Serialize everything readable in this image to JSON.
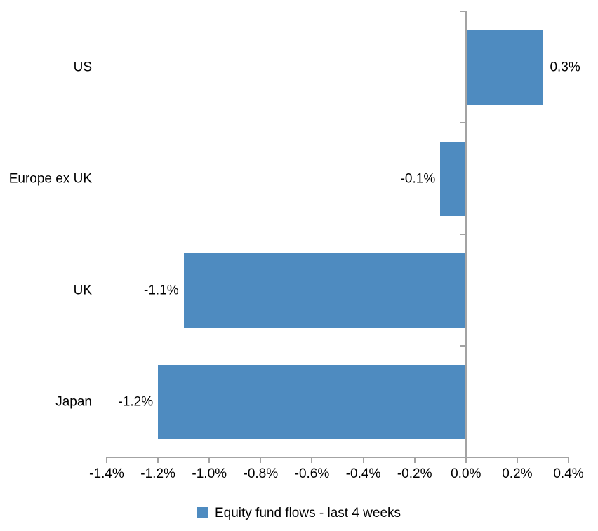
{
  "chart_data": {
    "type": "bar",
    "orientation": "horizontal",
    "title": "",
    "categories": [
      "US",
      "Europe ex UK",
      "UK",
      "Japan"
    ],
    "values": [
      0.3,
      -0.1,
      -1.1,
      -1.2
    ],
    "data_labels": [
      "0.3%",
      "-0.1%",
      "-1.1%",
      "-1.2%"
    ],
    "series_name": "Equity fund flows - last 4 weeks",
    "xlabel": "",
    "ylabel": "",
    "xlim": [
      -1.4,
      0.4
    ],
    "x_tick_step": 0.2,
    "x_tick_values": [
      -1.4,
      -1.2,
      -1.0,
      -0.8,
      -0.6,
      -0.4,
      -0.2,
      0.0,
      0.2,
      0.4
    ],
    "x_tick_labels": [
      "-1.4%",
      "-1.2%",
      "-1.0%",
      "-0.8%",
      "-0.6%",
      "-0.4%",
      "-0.2%",
      "0.0%",
      "0.2%",
      "0.4%"
    ],
    "grid": false,
    "legend_position": "bottom"
  },
  "colors": {
    "bar": "#4E8BC0",
    "axis": "#A3A3A3",
    "text": "#000000",
    "background": "#FFFFFF"
  }
}
